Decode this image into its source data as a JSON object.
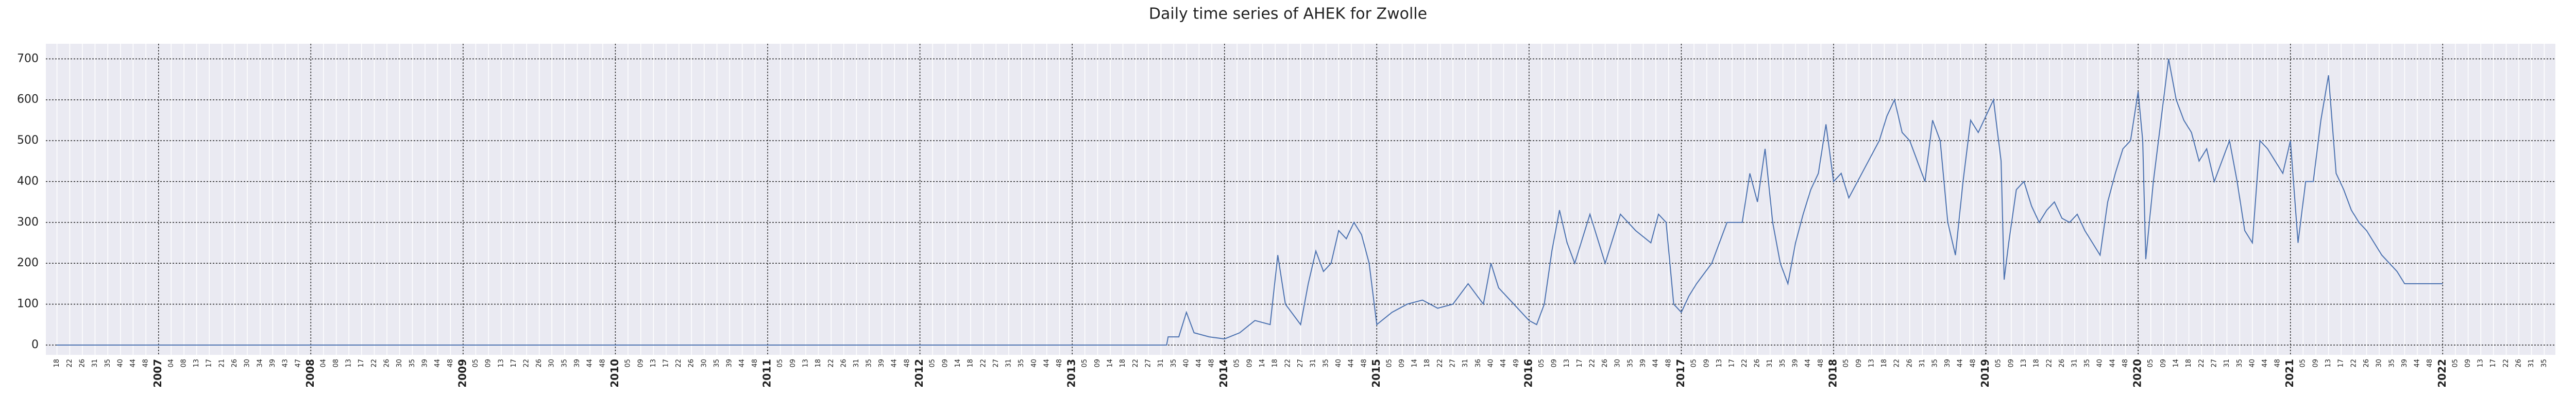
{
  "chart_data": {
    "type": "line",
    "title": "Daily time series of AHEK for Zwolle",
    "color": "#4c72b0",
    "xlim": [
      2006.26,
      2022.74
    ],
    "ylim": [
      -24,
      737
    ],
    "yticks": [
      0,
      100,
      200,
      300,
      400,
      500,
      600,
      700
    ],
    "grid": true,
    "xticks": [
      {
        "value": 2007,
        "label": "2007"
      },
      {
        "value": 2008,
        "label": "2008"
      },
      {
        "value": 2009,
        "label": "2009"
      },
      {
        "value": 2010,
        "label": "2010"
      },
      {
        "value": 2011,
        "label": "2011"
      },
      {
        "value": 2012,
        "label": "2012"
      },
      {
        "value": 2013,
        "label": "2013"
      },
      {
        "value": 2014,
        "label": "2014"
      },
      {
        "value": 2015,
        "label": "2015"
      },
      {
        "value": 2016,
        "label": "2016"
      },
      {
        "value": 2017,
        "label": "2017"
      },
      {
        "value": 2018,
        "label": "2018"
      },
      {
        "value": 2019,
        "label": "2019"
      },
      {
        "value": 2020,
        "label": "2020"
      },
      {
        "value": 2021,
        "label": "2021"
      },
      {
        "value": 2022,
        "label": "2022"
      }
    ],
    "xminor_ticks": [
      {
        "value": 2006.333,
        "label": "18"
      },
      {
        "value": 2006.417,
        "label": "22"
      },
      {
        "value": 2006.5,
        "label": "26"
      },
      {
        "value": 2006.583,
        "label": "31"
      },
      {
        "value": 2006.667,
        "label": "35"
      },
      {
        "value": 2006.75,
        "label": "40"
      },
      {
        "value": 2006.833,
        "label": "44"
      },
      {
        "value": 2006.917,
        "label": "48"
      },
      {
        "value": 2007.083,
        "label": "04"
      },
      {
        "value": 2007.167,
        "label": "08"
      },
      {
        "value": 2007.25,
        "label": "13"
      },
      {
        "value": 2007.333,
        "label": "17"
      },
      {
        "value": 2007.417,
        "label": "21"
      },
      {
        "value": 2007.5,
        "label": "26"
      },
      {
        "value": 2007.583,
        "label": "30"
      },
      {
        "value": 2007.667,
        "label": "34"
      },
      {
        "value": 2007.75,
        "label": "39"
      },
      {
        "value": 2007.833,
        "label": "43"
      },
      {
        "value": 2007.917,
        "label": "47"
      },
      {
        "value": 2008.083,
        "label": "04"
      },
      {
        "value": 2008.167,
        "label": "08"
      },
      {
        "value": 2008.25,
        "label": "13"
      },
      {
        "value": 2008.333,
        "label": "17"
      },
      {
        "value": 2008.417,
        "label": "22"
      },
      {
        "value": 2008.5,
        "label": "26"
      },
      {
        "value": 2008.583,
        "label": "30"
      },
      {
        "value": 2008.667,
        "label": "35"
      },
      {
        "value": 2008.75,
        "label": "39"
      },
      {
        "value": 2008.833,
        "label": "44"
      },
      {
        "value": 2008.917,
        "label": "48"
      },
      {
        "value": 2009.083,
        "label": "05"
      },
      {
        "value": 2009.167,
        "label": "09"
      },
      {
        "value": 2009.25,
        "label": "13"
      },
      {
        "value": 2009.333,
        "label": "17"
      },
      {
        "value": 2009.417,
        "label": "22"
      },
      {
        "value": 2009.5,
        "label": "26"
      },
      {
        "value": 2009.583,
        "label": "30"
      },
      {
        "value": 2009.667,
        "label": "35"
      },
      {
        "value": 2009.75,
        "label": "39"
      },
      {
        "value": 2009.833,
        "label": "44"
      },
      {
        "value": 2009.917,
        "label": "48"
      },
      {
        "value": 2010.083,
        "label": "05"
      },
      {
        "value": 2010.167,
        "label": "09"
      },
      {
        "value": 2010.25,
        "label": "13"
      },
      {
        "value": 2010.333,
        "label": "17"
      },
      {
        "value": 2010.417,
        "label": "22"
      },
      {
        "value": 2010.5,
        "label": "26"
      },
      {
        "value": 2010.583,
        "label": "30"
      },
      {
        "value": 2010.667,
        "label": "35"
      },
      {
        "value": 2010.75,
        "label": "39"
      },
      {
        "value": 2010.833,
        "label": "44"
      },
      {
        "value": 2010.917,
        "label": "48"
      },
      {
        "value": 2011.083,
        "label": "05"
      },
      {
        "value": 2011.167,
        "label": "09"
      },
      {
        "value": 2011.25,
        "label": "13"
      },
      {
        "value": 2011.333,
        "label": "18"
      },
      {
        "value": 2011.417,
        "label": "22"
      },
      {
        "value": 2011.5,
        "label": "26"
      },
      {
        "value": 2011.583,
        "label": "31"
      },
      {
        "value": 2011.667,
        "label": "35"
      },
      {
        "value": 2011.75,
        "label": "39"
      },
      {
        "value": 2011.833,
        "label": "44"
      },
      {
        "value": 2011.917,
        "label": "48"
      },
      {
        "value": 2012.083,
        "label": "05"
      },
      {
        "value": 2012.167,
        "label": "09"
      },
      {
        "value": 2012.25,
        "label": "14"
      },
      {
        "value": 2012.333,
        "label": "18"
      },
      {
        "value": 2012.417,
        "label": "22"
      },
      {
        "value": 2012.5,
        "label": "27"
      },
      {
        "value": 2012.583,
        "label": "31"
      },
      {
        "value": 2012.667,
        "label": "35"
      },
      {
        "value": 2012.75,
        "label": "40"
      },
      {
        "value": 2012.833,
        "label": "44"
      },
      {
        "value": 2012.917,
        "label": "48"
      },
      {
        "value": 2013.083,
        "label": "05"
      },
      {
        "value": 2013.167,
        "label": "09"
      },
      {
        "value": 2013.25,
        "label": "14"
      },
      {
        "value": 2013.333,
        "label": "18"
      },
      {
        "value": 2013.417,
        "label": "22"
      },
      {
        "value": 2013.5,
        "label": "27"
      },
      {
        "value": 2013.583,
        "label": "31"
      },
      {
        "value": 2013.667,
        "label": "35"
      },
      {
        "value": 2013.75,
        "label": "40"
      },
      {
        "value": 2013.833,
        "label": "44"
      },
      {
        "value": 2013.917,
        "label": "48"
      },
      {
        "value": 2014.083,
        "label": "05"
      },
      {
        "value": 2014.167,
        "label": "09"
      },
      {
        "value": 2014.25,
        "label": "14"
      },
      {
        "value": 2014.333,
        "label": "18"
      },
      {
        "value": 2014.417,
        "label": "22"
      },
      {
        "value": 2014.5,
        "label": "27"
      },
      {
        "value": 2014.583,
        "label": "31"
      },
      {
        "value": 2014.667,
        "label": "35"
      },
      {
        "value": 2014.75,
        "label": "40"
      },
      {
        "value": 2014.833,
        "label": "44"
      },
      {
        "value": 2014.917,
        "label": "48"
      },
      {
        "value": 2015.083,
        "label": "05"
      },
      {
        "value": 2015.167,
        "label": "09"
      },
      {
        "value": 2015.25,
        "label": "14"
      },
      {
        "value": 2015.333,
        "label": "18"
      },
      {
        "value": 2015.417,
        "label": "22"
      },
      {
        "value": 2015.5,
        "label": "27"
      },
      {
        "value": 2015.583,
        "label": "31"
      },
      {
        "value": 2015.667,
        "label": "36"
      },
      {
        "value": 2015.75,
        "label": "40"
      },
      {
        "value": 2015.833,
        "label": "44"
      },
      {
        "value": 2015.917,
        "label": "49"
      },
      {
        "value": 2016.083,
        "label": "05"
      },
      {
        "value": 2016.167,
        "label": "09"
      },
      {
        "value": 2016.25,
        "label": "13"
      },
      {
        "value": 2016.333,
        "label": "17"
      },
      {
        "value": 2016.417,
        "label": "22"
      },
      {
        "value": 2016.5,
        "label": "26"
      },
      {
        "value": 2016.583,
        "label": "30"
      },
      {
        "value": 2016.667,
        "label": "35"
      },
      {
        "value": 2016.75,
        "label": "39"
      },
      {
        "value": 2016.833,
        "label": "44"
      },
      {
        "value": 2016.917,
        "label": "48"
      },
      {
        "value": 2017.083,
        "label": "05"
      },
      {
        "value": 2017.167,
        "label": "09"
      },
      {
        "value": 2017.25,
        "label": "13"
      },
      {
        "value": 2017.333,
        "label": "17"
      },
      {
        "value": 2017.417,
        "label": "22"
      },
      {
        "value": 2017.5,
        "label": "26"
      },
      {
        "value": 2017.583,
        "label": "31"
      },
      {
        "value": 2017.667,
        "label": "35"
      },
      {
        "value": 2017.75,
        "label": "39"
      },
      {
        "value": 2017.833,
        "label": "44"
      },
      {
        "value": 2017.917,
        "label": "48"
      },
      {
        "value": 2018.083,
        "label": "05"
      },
      {
        "value": 2018.167,
        "label": "09"
      },
      {
        "value": 2018.25,
        "label": "13"
      },
      {
        "value": 2018.333,
        "label": "18"
      },
      {
        "value": 2018.417,
        "label": "22"
      },
      {
        "value": 2018.5,
        "label": "26"
      },
      {
        "value": 2018.583,
        "label": "31"
      },
      {
        "value": 2018.667,
        "label": "35"
      },
      {
        "value": 2018.75,
        "label": "39"
      },
      {
        "value": 2018.833,
        "label": "44"
      },
      {
        "value": 2018.917,
        "label": "48"
      },
      {
        "value": 2019.083,
        "label": "05"
      },
      {
        "value": 2019.167,
        "label": "09"
      },
      {
        "value": 2019.25,
        "label": "13"
      },
      {
        "value": 2019.333,
        "label": "18"
      },
      {
        "value": 2019.417,
        "label": "22"
      },
      {
        "value": 2019.5,
        "label": "26"
      },
      {
        "value": 2019.583,
        "label": "31"
      },
      {
        "value": 2019.667,
        "label": "35"
      },
      {
        "value": 2019.75,
        "label": "40"
      },
      {
        "value": 2019.833,
        "label": "44"
      },
      {
        "value": 2019.917,
        "label": "48"
      },
      {
        "value": 2020.083,
        "label": "05"
      },
      {
        "value": 2020.167,
        "label": "09"
      },
      {
        "value": 2020.25,
        "label": "14"
      },
      {
        "value": 2020.333,
        "label": "18"
      },
      {
        "value": 2020.417,
        "label": "22"
      },
      {
        "value": 2020.5,
        "label": "27"
      },
      {
        "value": 2020.583,
        "label": "31"
      },
      {
        "value": 2020.667,
        "label": "35"
      },
      {
        "value": 2020.75,
        "label": "40"
      },
      {
        "value": 2020.833,
        "label": "44"
      },
      {
        "value": 2020.917,
        "label": "48"
      },
      {
        "value": 2021.083,
        "label": "05"
      },
      {
        "value": 2021.167,
        "label": "09"
      },
      {
        "value": 2021.25,
        "label": "13"
      },
      {
        "value": 2021.333,
        "label": "17"
      },
      {
        "value": 2021.417,
        "label": "22"
      },
      {
        "value": 2021.5,
        "label": "26"
      },
      {
        "value": 2021.583,
        "label": "30"
      },
      {
        "value": 2021.667,
        "label": "35"
      },
      {
        "value": 2021.75,
        "label": "39"
      },
      {
        "value": 2021.833,
        "label": "44"
      },
      {
        "value": 2021.917,
        "label": "48"
      },
      {
        "value": 2022.083,
        "label": "05"
      },
      {
        "value": 2022.167,
        "label": "09"
      },
      {
        "value": 2022.25,
        "label": "13"
      },
      {
        "value": 2022.333,
        "label": "17"
      },
      {
        "value": 2022.417,
        "label": "22"
      },
      {
        "value": 2022.5,
        "label": "26"
      },
      {
        "value": 2022.583,
        "label": "31"
      },
      {
        "value": 2022.667,
        "label": "35"
      }
    ],
    "x": [
      2006.33,
      2013.62,
      2013.63,
      2013.7,
      2013.75,
      2013.8,
      2013.9,
      2014.0,
      2014.1,
      2014.2,
      2014.3,
      2014.35,
      2014.4,
      2014.5,
      2014.55,
      2014.6,
      2014.65,
      2014.7,
      2014.75,
      2014.8,
      2014.85,
      2014.9,
      2014.95,
      2015.0,
      2015.1,
      2015.2,
      2015.3,
      2015.4,
      2015.5,
      2015.6,
      2015.7,
      2015.75,
      2015.8,
      2015.9,
      2016.0,
      2016.05,
      2016.1,
      2016.15,
      2016.2,
      2016.25,
      2016.3,
      2016.4,
      2016.5,
      2016.6,
      2016.7,
      2016.8,
      2016.85,
      2016.9,
      2016.95,
      2017.0,
      2017.05,
      2017.1,
      2017.2,
      2017.3,
      2017.4,
      2017.45,
      2017.5,
      2017.55,
      2017.6,
      2017.65,
      2017.7,
      2017.75,
      2017.8,
      2017.85,
      2017.9,
      2017.95,
      2018.0,
      2018.05,
      2018.1,
      2018.2,
      2018.3,
      2018.35,
      2018.4,
      2018.45,
      2018.5,
      2018.6,
      2018.65,
      2018.7,
      2018.75,
      2018.8,
      2018.85,
      2018.9,
      2018.95,
      2019.0,
      2019.05,
      2019.1,
      2019.12,
      2019.15,
      2019.2,
      2019.25,
      2019.3,
      2019.35,
      2019.4,
      2019.45,
      2019.5,
      2019.55,
      2019.6,
      2019.65,
      2019.7,
      2019.75,
      2019.8,
      2019.85,
      2019.9,
      2019.95,
      2020.0,
      2020.03,
      2020.05,
      2020.1,
      2020.15,
      2020.2,
      2020.25,
      2020.3,
      2020.35,
      2020.4,
      2020.45,
      2020.5,
      2020.55,
      2020.6,
      2020.65,
      2020.7,
      2020.75,
      2020.8,
      2020.85,
      2020.9,
      2020.95,
      2021.0,
      2021.05,
      2021.1,
      2021.15,
      2021.2,
      2021.25,
      2021.3,
      2021.35,
      2021.4,
      2021.45,
      2021.5,
      2021.55,
      2021.6,
      2021.65,
      2021.7,
      2021.75,
      2022.0
    ],
    "values": [
      0,
      0,
      20,
      20,
      80,
      30,
      20,
      15,
      30,
      60,
      50,
      220,
      100,
      50,
      150,
      230,
      180,
      200,
      280,
      260,
      300,
      270,
      200,
      50,
      80,
      100,
      110,
      90,
      100,
      150,
      100,
      200,
      140,
      100,
      60,
      50,
      100,
      230,
      330,
      250,
      200,
      320,
      200,
      320,
      280,
      250,
      320,
      300,
      100,
      80,
      120,
      150,
      200,
      300,
      300,
      420,
      350,
      480,
      300,
      200,
      150,
      250,
      320,
      380,
      420,
      540,
      400,
      420,
      360,
      430,
      500,
      560,
      600,
      520,
      500,
      400,
      550,
      500,
      300,
      220,
      400,
      550,
      520,
      560,
      600,
      450,
      160,
      250,
      380,
      400,
      340,
      300,
      330,
      350,
      310,
      300,
      320,
      280,
      250,
      220,
      350,
      420,
      480,
      500,
      620,
      500,
      210,
      400,
      550,
      700,
      600,
      550,
      520,
      450,
      480,
      400,
      450,
      500,
      400,
      280,
      250,
      500,
      480,
      450,
      420,
      500,
      250,
      400,
      400,
      550,
      660,
      420,
      380,
      330,
      300,
      280,
      250,
      220,
      200,
      180,
      150,
      150
    ]
  }
}
